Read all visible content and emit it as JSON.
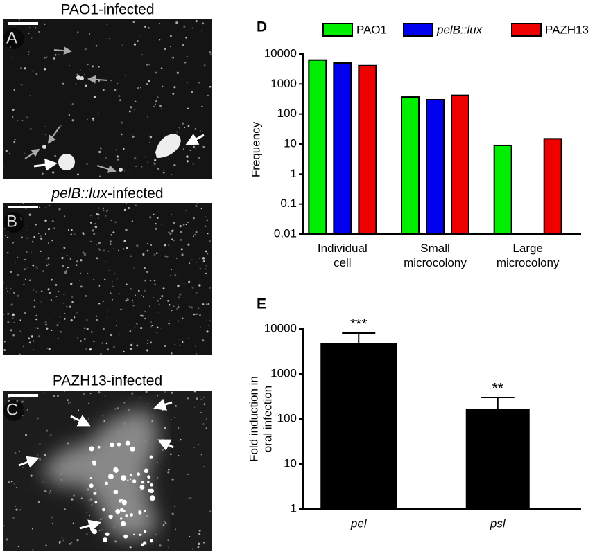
{
  "panels": [
    {
      "letter": "A",
      "title": "PAO1-infected"
    },
    {
      "letter": "B",
      "title": "pelB::lux-infected"
    },
    {
      "letter": "C",
      "title": "PAZH13-infected"
    }
  ],
  "chart_data": [
    {
      "type": "bar",
      "panel": "D",
      "ylabel": "Frequency",
      "log_scale": true,
      "categories": [
        "Individual cell",
        "Small microcolony",
        "Large microcolony"
      ],
      "series": [
        {
          "name": "PAO1",
          "color": "#00ee00",
          "values": [
            6300,
            370,
            9
          ]
        },
        {
          "name": "pelB::lux",
          "color": "#0000ee",
          "style": "italic",
          "values": [
            5000,
            300,
            null
          ]
        },
        {
          "name": "PAZH13",
          "color": "#ee0000",
          "values": [
            4100,
            420,
            15
          ]
        }
      ],
      "ylim": [
        0.01,
        10000
      ],
      "yticks": [
        0.01,
        0.1,
        1,
        10,
        100,
        1000,
        10000
      ]
    },
    {
      "type": "bar",
      "panel": "E",
      "ylabel": [
        "Fold induction in",
        "oral infection"
      ],
      "log_scale": true,
      "categories": [
        "pel",
        "psl"
      ],
      "category_style": "italic",
      "values": [
        4900,
        170
      ],
      "errors": [
        3200,
        130
      ],
      "annotations": [
        "***",
        "**"
      ],
      "color": "#000000",
      "ylim": [
        1,
        10000
      ],
      "yticks": [
        1,
        10,
        100,
        1000,
        10000
      ]
    }
  ]
}
